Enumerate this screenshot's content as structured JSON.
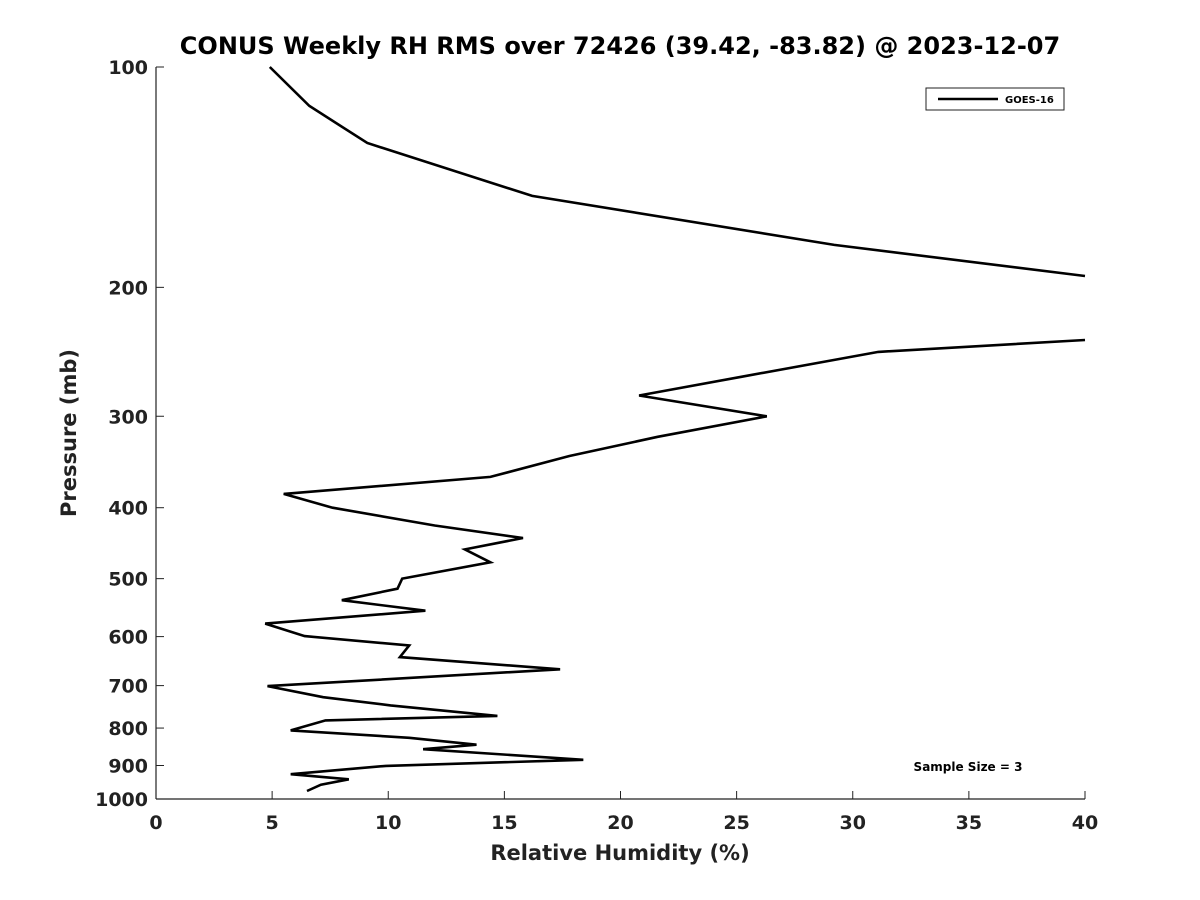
{
  "chart_data": {
    "type": "line",
    "title": "CONUS Weekly RH RMS over 72426 (39.42, -83.82) @ 2023-12-07",
    "xlabel": "Relative Humidity (%)",
    "ylabel": "Pressure (mb)",
    "xlim": [
      0,
      40
    ],
    "ylim": [
      100,
      1000
    ],
    "y_scale": "log",
    "y_reversed": true,
    "grid": false,
    "legend_position": "top-right",
    "x_ticks": [
      0,
      5,
      10,
      15,
      20,
      25,
      30,
      35,
      40
    ],
    "y_ticks": [
      100,
      200,
      300,
      400,
      500,
      600,
      700,
      800,
      900,
      1000
    ],
    "series": [
      {
        "name": "GOES-16",
        "color": "#000000",
        "points": [
          {
            "x": 4.9,
            "y": 100
          },
          {
            "x": 6.6,
            "y": 113
          },
          {
            "x": 9.1,
            "y": 127
          },
          {
            "x": 16.2,
            "y": 150
          },
          {
            "x": 29.2,
            "y": 175
          },
          {
            "x": 40.0,
            "y": 193
          },
          {
            "x": null,
            "y": 210
          },
          {
            "x": 40.0,
            "y": 236
          },
          {
            "x": 31.1,
            "y": 245
          },
          {
            "x": 25.2,
            "y": 265
          },
          {
            "x": 20.8,
            "y": 281
          },
          {
            "x": 26.3,
            "y": 300
          },
          {
            "x": 21.6,
            "y": 320
          },
          {
            "x": 17.8,
            "y": 340
          },
          {
            "x": 14.4,
            "y": 363
          },
          {
            "x": 5.5,
            "y": 383
          },
          {
            "x": 7.6,
            "y": 400
          },
          {
            "x": 12.0,
            "y": 423
          },
          {
            "x": 15.8,
            "y": 440
          },
          {
            "x": 13.3,
            "y": 456
          },
          {
            "x": 14.4,
            "y": 475
          },
          {
            "x": 10.6,
            "y": 500
          },
          {
            "x": 10.4,
            "y": 516
          },
          {
            "x": 8.0,
            "y": 535
          },
          {
            "x": 11.6,
            "y": 553
          },
          {
            "x": 4.7,
            "y": 576
          },
          {
            "x": 6.4,
            "y": 599
          },
          {
            "x": 10.9,
            "y": 617
          },
          {
            "x": 10.5,
            "y": 640
          },
          {
            "x": 17.4,
            "y": 665
          },
          {
            "x": 4.8,
            "y": 701
          },
          {
            "x": 7.2,
            "y": 726
          },
          {
            "x": 10.1,
            "y": 745
          },
          {
            "x": 14.7,
            "y": 770
          },
          {
            "x": 7.3,
            "y": 781
          },
          {
            "x": 5.8,
            "y": 806
          },
          {
            "x": 10.9,
            "y": 825
          },
          {
            "x": 13.8,
            "y": 843
          },
          {
            "x": 11.5,
            "y": 855
          },
          {
            "x": 18.4,
            "y": 884
          },
          {
            "x": 9.9,
            "y": 901
          },
          {
            "x": 5.8,
            "y": 925
          },
          {
            "x": 8.3,
            "y": 940
          },
          {
            "x": 7.1,
            "y": 956
          },
          {
            "x": 6.5,
            "y": 975
          }
        ]
      }
    ],
    "annotations": [
      {
        "text": "Sample Size = 3",
        "position": "bottom-right"
      }
    ]
  }
}
